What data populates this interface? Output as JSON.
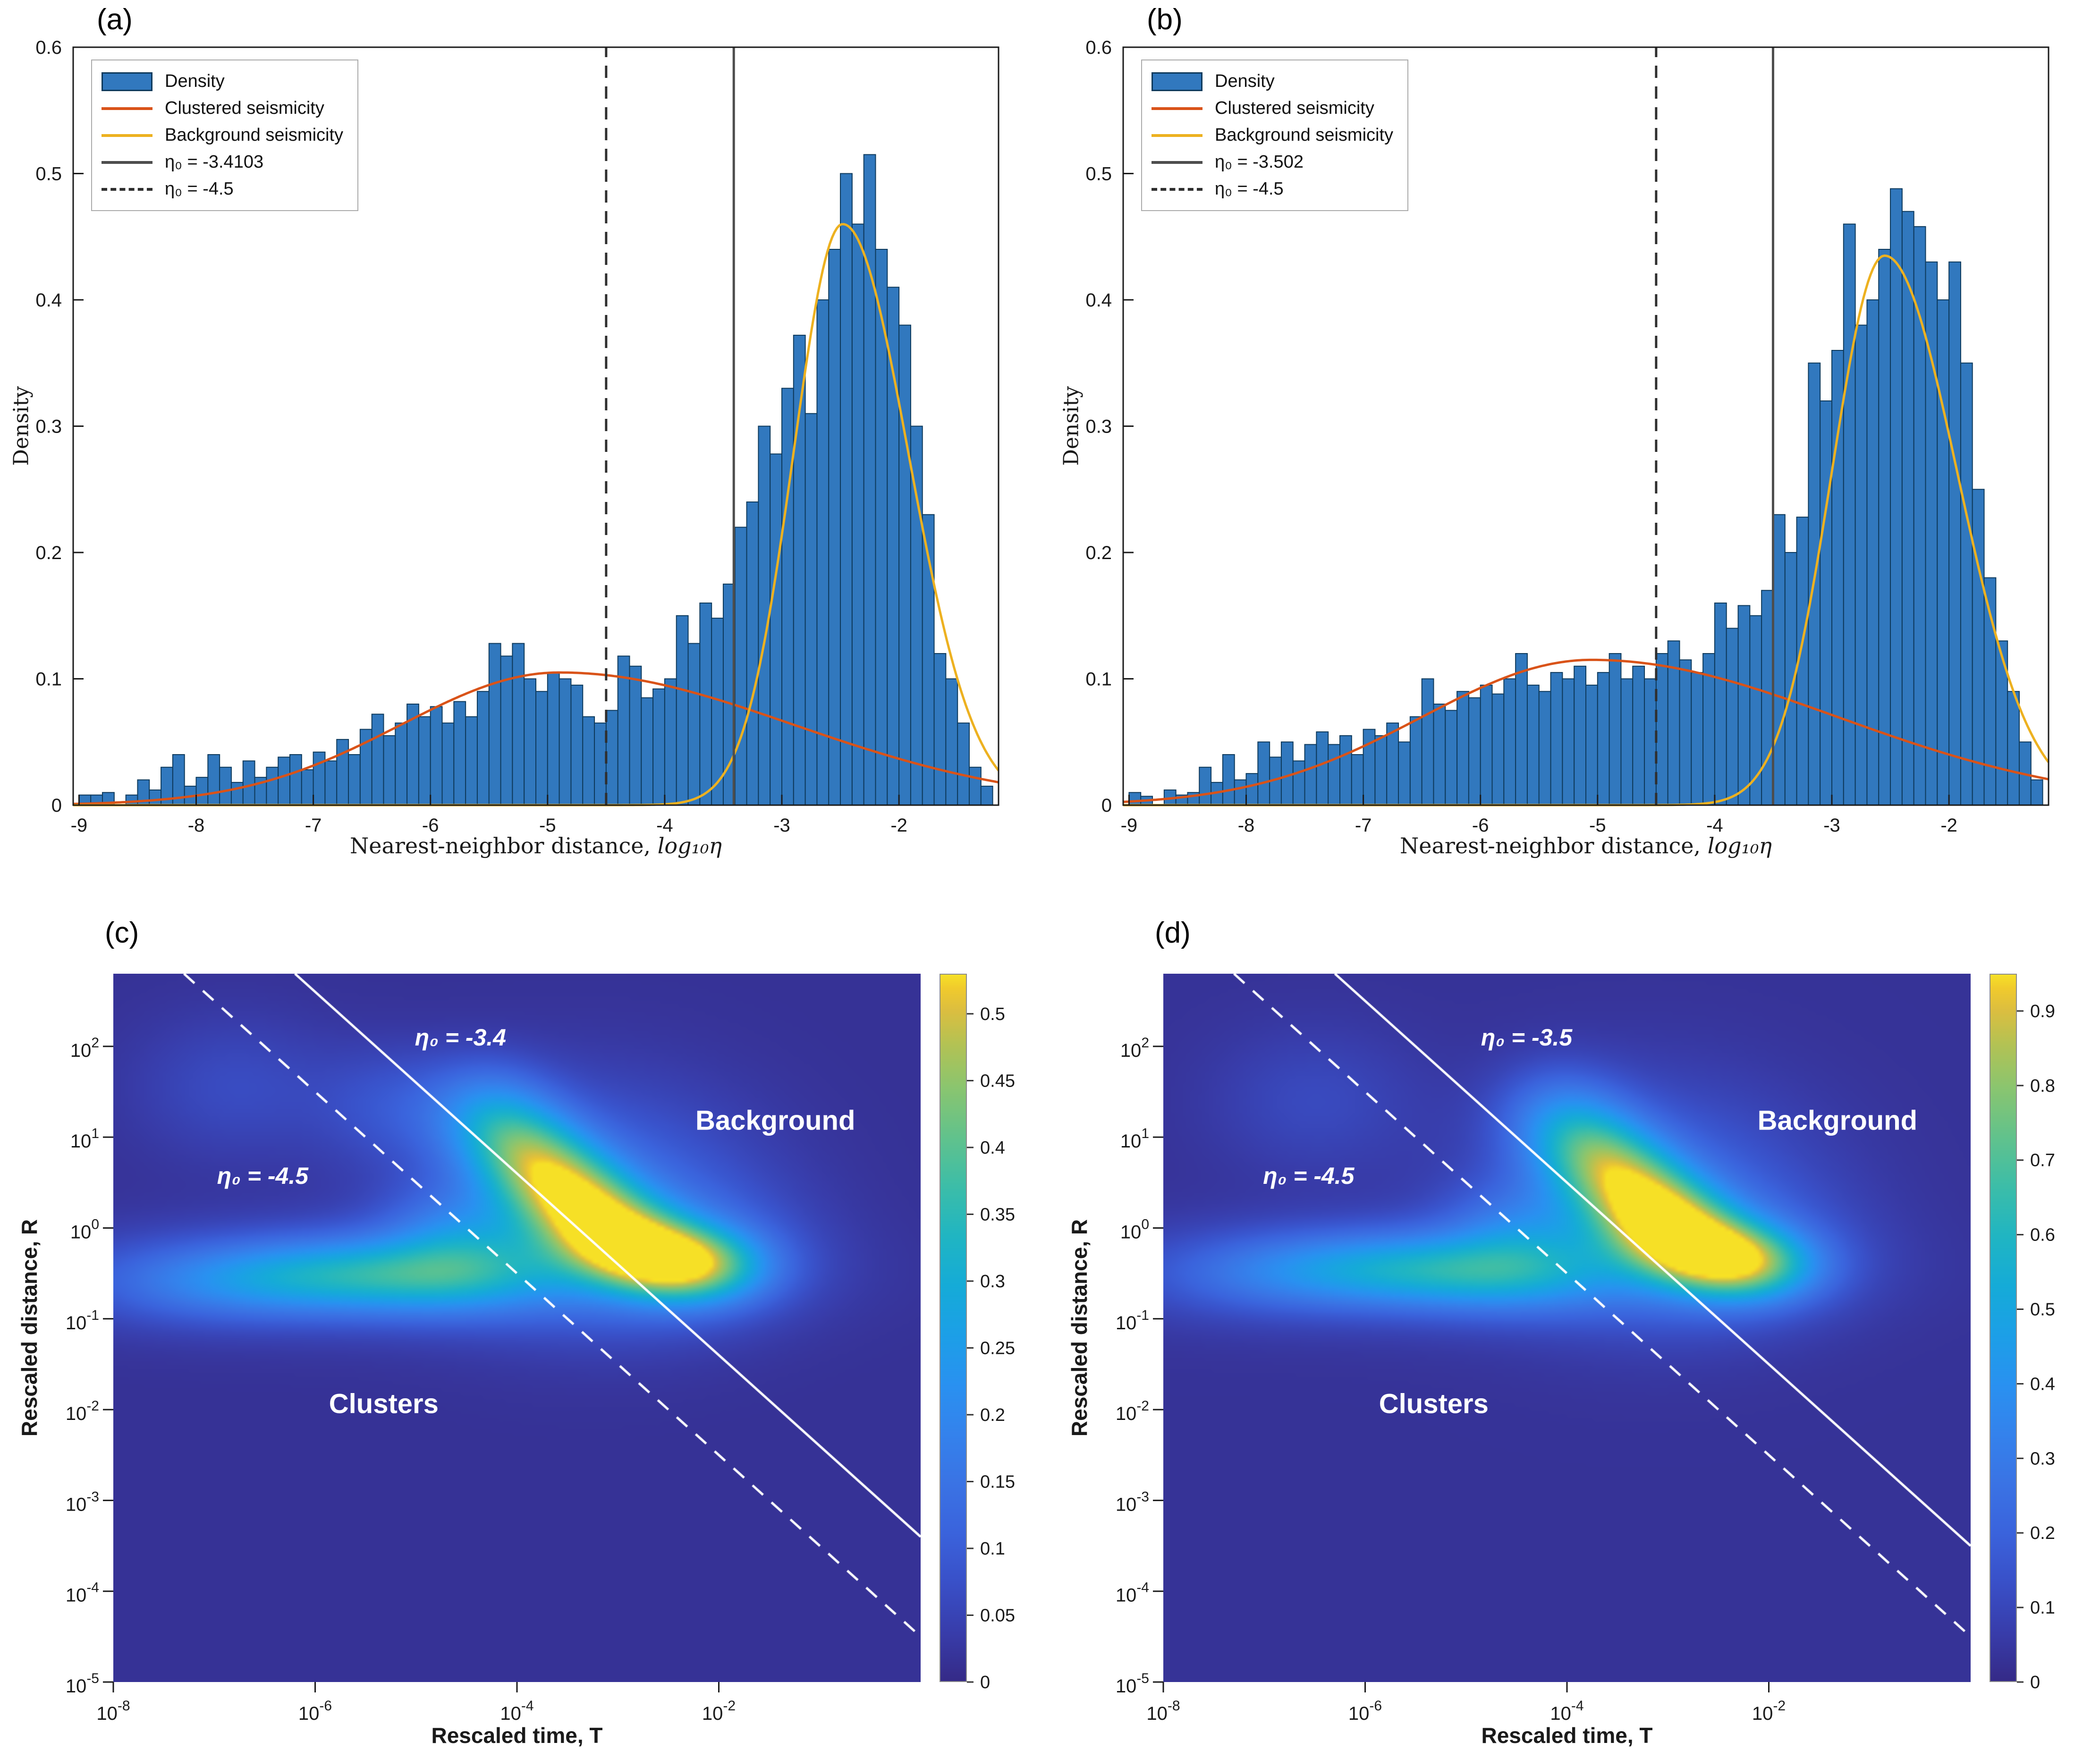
{
  "colors": {
    "bar_fill": "#3178be",
    "bar_edge": "#0e3a5c",
    "clustered_curve": "#d95319",
    "background_curve": "#edb120",
    "eta_solid_line": "#4d4d4d",
    "eta_dashed_line": "#2f2f2f",
    "frame": "#1a1a1a",
    "heatmap_line": "#ffffff",
    "heatmap_text": "#ffffff"
  },
  "parula": [
    [
      0.0,
      "#352a87"
    ],
    [
      0.07,
      "#383dab"
    ],
    [
      0.14,
      "#3950c8"
    ],
    [
      0.21,
      "#3a63dc"
    ],
    [
      0.28,
      "#3a73e4"
    ],
    [
      0.35,
      "#3482ec"
    ],
    [
      0.42,
      "#2991f0"
    ],
    [
      0.49,
      "#1c9fe7"
    ],
    [
      0.56,
      "#15abd7"
    ],
    [
      0.63,
      "#20b5c2"
    ],
    [
      0.7,
      "#3cbda8"
    ],
    [
      0.77,
      "#61c28c"
    ],
    [
      0.84,
      "#8ac56f"
    ],
    [
      0.9,
      "#b2c254"
    ],
    [
      0.95,
      "#dcbe3f"
    ],
    [
      0.98,
      "#f0ca2d"
    ],
    [
      1.0,
      "#f6e026"
    ]
  ],
  "chart_data": [
    {
      "id": "a",
      "type": "bar",
      "panel_label": "(a)",
      "xlabel": "Nearest-neighbor distance, ",
      "xlabel_math": "log₁₀η",
      "ylabel": "Density",
      "xlim": [
        -9.05,
        -1.15
      ],
      "ylim": [
        0,
        0.6
      ],
      "xticks": [
        -9,
        -8,
        -7,
        -6,
        -5,
        -4,
        -3,
        -2
      ],
      "xtick_labels": [
        "-9",
        "-8",
        "-7",
        "-6",
        "-5",
        "-4",
        "-3",
        "-2"
      ],
      "yticks": [
        0,
        0.1,
        0.2,
        0.3,
        0.4,
        0.5,
        0.6
      ],
      "ytick_labels": [
        "0",
        "0.1",
        "0.2",
        "0.3",
        "0.4",
        "0.5",
        "0.6"
      ],
      "legend": [
        "Density",
        "Clustered seismicity",
        "Background seismicity",
        "η₀ = -3.4103",
        "η₀ = -4.5"
      ],
      "eta0_solid": -3.4103,
      "eta0_dashed": -4.5,
      "hist": {
        "bin_start": -9.0,
        "bin_width": 0.1,
        "densities": [
          0.008,
          0.008,
          0.01,
          0.0,
          0.008,
          0.02,
          0.012,
          0.03,
          0.04,
          0.015,
          0.022,
          0.04,
          0.03,
          0.018,
          0.035,
          0.022,
          0.03,
          0.038,
          0.04,
          0.028,
          0.042,
          0.035,
          0.052,
          0.04,
          0.06,
          0.072,
          0.055,
          0.065,
          0.08,
          0.07,
          0.078,
          0.065,
          0.082,
          0.07,
          0.09,
          0.128,
          0.118,
          0.128,
          0.1,
          0.09,
          0.105,
          0.1,
          0.095,
          0.07,
          0.065,
          0.075,
          0.118,
          0.11,
          0.085,
          0.092,
          0.1,
          0.15,
          0.128,
          0.16,
          0.148,
          0.175,
          0.22,
          0.24,
          0.3,
          0.278,
          0.33,
          0.372,
          0.31,
          0.4,
          0.44,
          0.5,
          0.46,
          0.515,
          0.44,
          0.41,
          0.38,
          0.3,
          0.23,
          0.12,
          0.1,
          0.065,
          0.03,
          0.015
        ]
      },
      "curves": [
        {
          "name": "Clustered seismicity",
          "color": "#d95319",
          "amp": 0.105,
          "mu": -4.9,
          "sigma_left": 1.35,
          "sigma_right": 2.0
        },
        {
          "name": "Background seismicity",
          "color": "#edb120",
          "amp": 0.46,
          "mu": -2.48,
          "sigma_left": 0.42,
          "sigma_right": 0.56
        }
      ]
    },
    {
      "id": "b",
      "type": "bar",
      "panel_label": "(b)",
      "xlabel": "Nearest-neighbor distance, ",
      "xlabel_math": "log₁₀η",
      "ylabel": "Density",
      "xlim": [
        -9.05,
        -1.15
      ],
      "ylim": [
        0,
        0.6
      ],
      "xticks": [
        -9,
        -8,
        -7,
        -6,
        -5,
        -4,
        -3,
        -2
      ],
      "xtick_labels": [
        "-9",
        "-8",
        "-7",
        "-6",
        "-5",
        "-4",
        "-3",
        "-2"
      ],
      "yticks": [
        0,
        0.1,
        0.2,
        0.3,
        0.4,
        0.5,
        0.6
      ],
      "ytick_labels": [
        "0",
        "0.1",
        "0.2",
        "0.3",
        "0.4",
        "0.5",
        "0.6"
      ],
      "legend": [
        "Density",
        "Clustered seismicity",
        "Background seismicity",
        "η₀ = -3.502",
        "η₀ = -4.5"
      ],
      "eta0_solid": -3.502,
      "eta0_dashed": -4.5,
      "hist": {
        "bin_start": -9.0,
        "bin_width": 0.1,
        "densities": [
          0.01,
          0.007,
          0.0,
          0.012,
          0.008,
          0.01,
          0.03,
          0.018,
          0.04,
          0.02,
          0.025,
          0.05,
          0.038,
          0.05,
          0.035,
          0.048,
          0.058,
          0.048,
          0.055,
          0.04,
          0.06,
          0.055,
          0.065,
          0.05,
          0.07,
          0.1,
          0.08,
          0.075,
          0.09,
          0.085,
          0.095,
          0.088,
          0.1,
          0.12,
          0.095,
          0.09,
          0.105,
          0.1,
          0.11,
          0.095,
          0.105,
          0.12,
          0.1,
          0.11,
          0.1,
          0.12,
          0.13,
          0.115,
          0.105,
          0.12,
          0.16,
          0.14,
          0.158,
          0.15,
          0.17,
          0.23,
          0.2,
          0.228,
          0.35,
          0.32,
          0.36,
          0.46,
          0.38,
          0.4,
          0.44,
          0.488,
          0.47,
          0.458,
          0.43,
          0.4,
          0.43,
          0.35,
          0.25,
          0.18,
          0.13,
          0.09,
          0.05,
          0.02
        ]
      },
      "curves": [
        {
          "name": "Clustered seismicity",
          "color": "#d95319",
          "amp": 0.115,
          "mu": -5.05,
          "sigma_left": 1.45,
          "sigma_right": 2.1
        },
        {
          "name": "Background seismicity",
          "color": "#edb120",
          "amp": 0.435,
          "mu": -2.55,
          "sigma_left": 0.45,
          "sigma_right": 0.62
        }
      ]
    },
    {
      "id": "c",
      "type": "heatmap",
      "panel_label": "(c)",
      "xlabel": "Rescaled time, T",
      "ylabel": "Rescaled distance, R",
      "xlim": [
        -8,
        0
      ],
      "ylim": [
        -5,
        2.8
      ],
      "xtick_exponents": [
        -8,
        -6,
        -4,
        -2
      ],
      "xtick_exp_labels": [
        "-8",
        "-6",
        "-4",
        "-2"
      ],
      "ytick_exponents": [
        2,
        1,
        0,
        -1,
        -2,
        -3,
        -4,
        -5
      ],
      "ytick_exp_labels": [
        "2",
        "1",
        "0",
        "-1",
        "-2",
        "-3",
        "-4",
        "-5"
      ],
      "colormap": "parula",
      "vmin": 0,
      "vmax": 0.53,
      "base": 0.015,
      "colorbar_ticks": [
        0,
        0.05,
        0.1,
        0.15,
        0.2,
        0.25,
        0.3,
        0.35,
        0.4,
        0.45,
        0.5
      ],
      "colorbar_tick_labels": [
        "0",
        "0.05",
        "0.1",
        "0.15",
        "0.2",
        "0.25",
        "0.3",
        "0.35",
        "0.4",
        "0.45",
        "0.5"
      ],
      "line_solid": {
        "eta0": -3.4,
        "label": "η₀ = -3.4",
        "label_fx": 0.43,
        "label_fy": 0.09
      },
      "line_dashed": {
        "eta0": -4.5,
        "label": "η₀ = -4.5",
        "label_fx": 0.185,
        "label_fy": 0.285
      },
      "regions": [
        {
          "text": "Background",
          "fx": 0.82,
          "fy": 0.207
        },
        {
          "text": "Clusters",
          "fx": 0.335,
          "fy": 0.607
        }
      ],
      "blobs": [
        [
          -4.3,
          1.3,
          0.42,
          0.38,
          0.13
        ],
        [
          -4.0,
          0.95,
          0.4,
          0.34,
          0.18
        ],
        [
          -3.7,
          0.62,
          0.4,
          0.32,
          0.22
        ],
        [
          -3.4,
          0.3,
          0.4,
          0.3,
          0.24
        ],
        [
          -3.1,
          0.0,
          0.42,
          0.28,
          0.23
        ],
        [
          -2.8,
          -0.25,
          0.45,
          0.26,
          0.22
        ],
        [
          -2.45,
          -0.4,
          0.45,
          0.26,
          0.21
        ],
        [
          -2.1,
          -0.45,
          0.48,
          0.28,
          0.16
        ],
        [
          -3.3,
          0.3,
          1.1,
          0.85,
          0.12
        ],
        [
          -2.5,
          -0.3,
          0.85,
          0.5,
          0.1
        ],
        [
          -7.15,
          -0.6,
          0.8,
          0.3,
          0.07
        ],
        [
          -6.4,
          -0.55,
          0.75,
          0.28,
          0.09
        ],
        [
          -5.7,
          -0.5,
          0.7,
          0.28,
          0.1
        ],
        [
          -5.0,
          -0.55,
          0.7,
          0.28,
          0.1
        ],
        [
          -4.35,
          -0.5,
          0.7,
          0.3,
          0.1
        ],
        [
          -5.6,
          -0.55,
          2.3,
          0.42,
          0.08
        ],
        [
          -6.8,
          1.55,
          0.7,
          0.55,
          0.05
        ],
        [
          -5.2,
          1.35,
          0.55,
          0.45,
          0.06
        ],
        [
          -4.6,
          -0.05,
          0.5,
          0.38,
          0.1
        ]
      ]
    },
    {
      "id": "d",
      "type": "heatmap",
      "panel_label": "(d)",
      "xlabel": "Rescaled time, T",
      "ylabel": "Rescaled distance, R",
      "xlim": [
        -8,
        0
      ],
      "ylim": [
        -5,
        2.8
      ],
      "xtick_exponents": [
        -8,
        -6,
        -4,
        -2
      ],
      "xtick_exp_labels": [
        "-8",
        "-6",
        "-4",
        "-2"
      ],
      "ytick_exponents": [
        2,
        1,
        0,
        -1,
        -2,
        -3,
        -4,
        -5
      ],
      "ytick_exp_labels": [
        "2",
        "1",
        "0",
        "-1",
        "-2",
        "-3",
        "-4",
        "-5"
      ],
      "colormap": "parula",
      "vmin": 0,
      "vmax": 0.95,
      "base": 0.03,
      "colorbar_ticks": [
        0,
        0.1,
        0.2,
        0.3,
        0.4,
        0.5,
        0.6,
        0.7,
        0.8,
        0.9
      ],
      "colorbar_tick_labels": [
        "0",
        "0.1",
        "0.2",
        "0.3",
        "0.4",
        "0.5",
        "0.6",
        "0.7",
        "0.8",
        "0.9"
      ],
      "line_solid": {
        "eta0": -3.5,
        "label": "η₀ = -3.5",
        "label_fx": 0.45,
        "label_fy": 0.09
      },
      "line_dashed": {
        "eta0": -4.5,
        "label": "η₀ = -4.5",
        "label_fx": 0.18,
        "label_fy": 0.285
      },
      "regions": [
        {
          "text": "Background",
          "fx": 0.835,
          "fy": 0.207
        },
        {
          "text": "Clusters",
          "fx": 0.335,
          "fy": 0.607
        }
      ],
      "blobs": [
        [
          -4.1,
          1.25,
          0.42,
          0.38,
          0.2
        ],
        [
          -3.8,
          0.92,
          0.4,
          0.34,
          0.3
        ],
        [
          -3.5,
          0.6,
          0.4,
          0.32,
          0.38
        ],
        [
          -3.2,
          0.28,
          0.4,
          0.3,
          0.42
        ],
        [
          -2.95,
          0.0,
          0.42,
          0.28,
          0.44
        ],
        [
          -2.65,
          -0.25,
          0.45,
          0.26,
          0.4
        ],
        [
          -2.35,
          -0.4,
          0.45,
          0.26,
          0.32
        ],
        [
          -2.05,
          -0.45,
          0.48,
          0.28,
          0.22
        ],
        [
          -3.2,
          0.3,
          1.1,
          0.85,
          0.2
        ],
        [
          -2.5,
          -0.3,
          0.85,
          0.5,
          0.15
        ],
        [
          -7.0,
          -0.5,
          0.8,
          0.3,
          0.12
        ],
        [
          -6.25,
          -0.45,
          0.75,
          0.28,
          0.15
        ],
        [
          -5.55,
          -0.45,
          0.7,
          0.28,
          0.17
        ],
        [
          -4.9,
          -0.5,
          0.7,
          0.28,
          0.17
        ],
        [
          -4.3,
          -0.5,
          0.7,
          0.3,
          0.16
        ],
        [
          -5.5,
          -0.5,
          2.3,
          0.42,
          0.12
        ],
        [
          -6.5,
          1.4,
          0.7,
          0.55,
          0.08
        ],
        [
          -4.5,
          0.0,
          0.5,
          0.38,
          0.16
        ]
      ]
    }
  ]
}
